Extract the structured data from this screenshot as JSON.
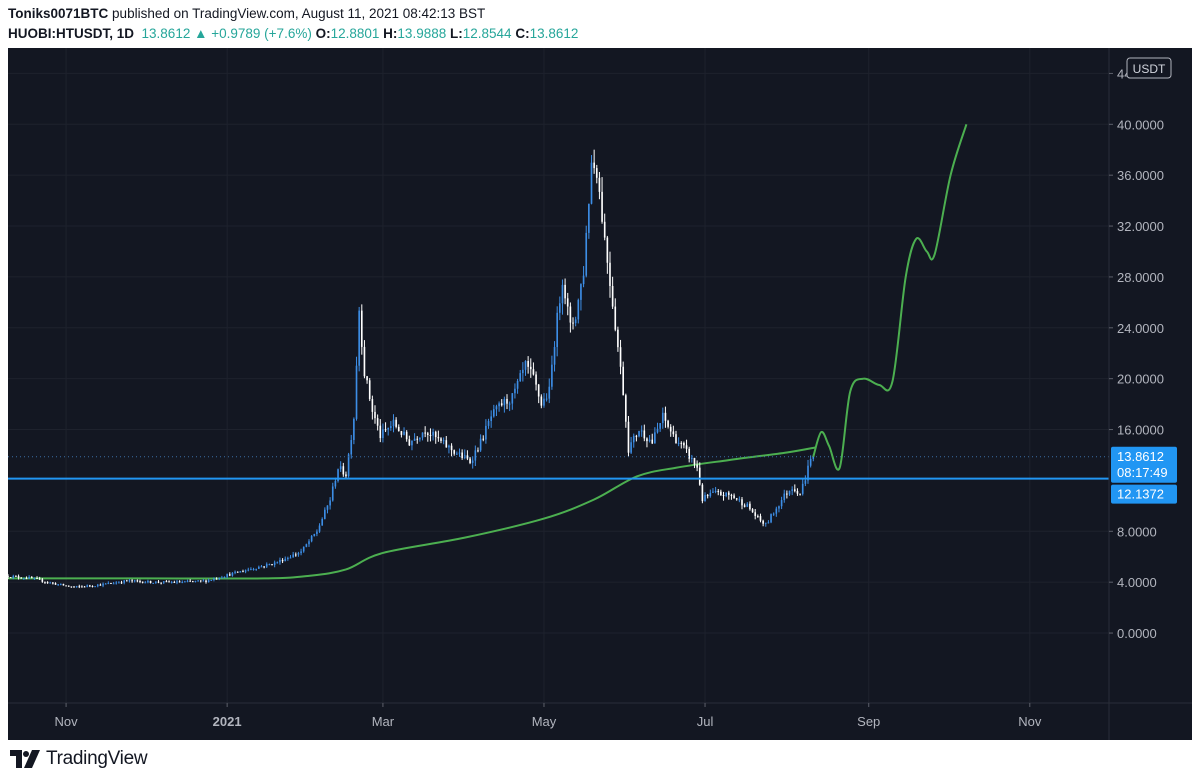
{
  "header": {
    "author": "Toniks0071BTC",
    "published_text": "published on TradingView.com, August 11, 2021 08:42:13 BST",
    "symbol": "HUOBI:HTUSDT, 1D",
    "last": "13.8612",
    "change_arrow": "▲",
    "change": "+0.9789 (+7.6%)",
    "o_label": "O:",
    "o_value": "12.8801",
    "h_label": "H:",
    "h_value": "13.9888",
    "l_label": "L:",
    "l_value": "12.8544",
    "c_label": "C:",
    "c_value": "13.8612"
  },
  "footer": {
    "brand": "TradingView"
  },
  "colors": {
    "background": "#131722",
    "grid": "#1e222d",
    "candle_up": "#3d8ee6",
    "candle_down": "#ffffff",
    "ma_line": "#4caf50",
    "horizontal_line": "#2196f3",
    "last_price_badge": "#2196f3"
  },
  "chart_data": {
    "type": "candlestick",
    "currency": "USDT",
    "y_ticks": [
      "44.0000",
      "40.0000",
      "36.0000",
      "32.0000",
      "28.0000",
      "24.0000",
      "20.0000",
      "16.0000",
      "8.0000",
      "4.0000",
      "0.0000"
    ],
    "ylim": [
      -5.5,
      46
    ],
    "x_ticks": [
      "Nov",
      "2021",
      "Mar",
      "May",
      "Jul",
      "Sep",
      "Nov"
    ],
    "x_tick_dates": [
      "2020-11-01",
      "2021-01-01",
      "2021-03-01",
      "2021-05-01",
      "2021-07-01",
      "2021-09-01",
      "2021-11-01"
    ],
    "xlim": [
      "2020-10-10",
      "2021-12-01"
    ],
    "last_price": {
      "value": 13.8612,
      "label": "13.8612",
      "countdown": "08:17:49"
    },
    "horizontal_line": {
      "value": 12.1372,
      "label": "12.1372"
    },
    "anchors": [
      [
        "2020-10-10",
        4.5
      ],
      [
        "2020-10-20",
        4.3
      ],
      [
        "2020-10-28",
        3.9
      ],
      [
        "2020-11-05",
        3.6
      ],
      [
        "2020-11-15",
        3.8
      ],
      [
        "2020-11-25",
        4.1
      ],
      [
        "2020-12-05",
        4.0
      ],
      [
        "2020-12-15",
        4.0
      ],
      [
        "2020-12-25",
        4.1
      ],
      [
        "2021-01-01",
        4.5
      ],
      [
        "2021-01-10",
        5.0
      ],
      [
        "2021-01-20",
        5.5
      ],
      [
        "2021-01-30",
        6.4
      ],
      [
        "2021-02-05",
        8.0
      ],
      [
        "2021-02-10",
        10.5
      ],
      [
        "2021-02-13",
        13.0
      ],
      [
        "2021-02-16",
        12.5
      ],
      [
        "2021-02-19",
        17.0
      ],
      [
        "2021-02-21",
        25.5
      ],
      [
        "2021-02-23",
        20.5
      ],
      [
        "2021-02-26",
        17.5
      ],
      [
        "2021-03-01",
        15.5
      ],
      [
        "2021-03-06",
        16.5
      ],
      [
        "2021-03-12",
        15.0
      ],
      [
        "2021-03-18",
        16.0
      ],
      [
        "2021-03-24",
        15.0
      ],
      [
        "2021-03-31",
        14.0
      ],
      [
        "2021-04-04",
        13.5
      ],
      [
        "2021-04-08",
        15.0
      ],
      [
        "2021-04-12",
        17.0
      ],
      [
        "2021-04-16",
        18.0
      ],
      [
        "2021-04-20",
        18.5
      ],
      [
        "2021-04-25",
        21.0
      ],
      [
        "2021-04-28",
        20.0
      ],
      [
        "2021-05-01",
        18.0
      ],
      [
        "2021-05-04",
        19.0
      ],
      [
        "2021-05-06",
        23.0
      ],
      [
        "2021-05-09",
        28.0
      ],
      [
        "2021-05-12",
        24.0
      ],
      [
        "2021-05-14",
        25.0
      ],
      [
        "2021-05-17",
        28.5
      ],
      [
        "2021-05-20",
        37.0
      ],
      [
        "2021-05-22",
        36.5
      ],
      [
        "2021-05-25",
        31.0
      ],
      [
        "2021-05-28",
        26.0
      ],
      [
        "2021-06-01",
        19.0
      ],
      [
        "2021-06-03",
        14.5
      ],
      [
        "2021-06-07",
        16.0
      ],
      [
        "2021-06-12",
        15.0
      ],
      [
        "2021-06-16",
        17.0
      ],
      [
        "2021-06-20",
        15.5
      ],
      [
        "2021-06-24",
        14.5
      ],
      [
        "2021-06-29",
        13.0
      ],
      [
        "2021-07-01",
        10.5
      ],
      [
        "2021-07-05",
        11.0
      ],
      [
        "2021-07-12",
        10.8
      ],
      [
        "2021-07-18",
        10.0
      ],
      [
        "2021-07-22",
        9.0
      ],
      [
        "2021-07-25",
        8.5
      ],
      [
        "2021-07-28",
        9.5
      ],
      [
        "2021-08-01",
        10.8
      ],
      [
        "2021-08-04",
        11.5
      ],
      [
        "2021-08-07",
        11.0
      ],
      [
        "2021-08-09",
        12.2
      ],
      [
        "2021-08-10",
        13.0
      ],
      [
        "2021-08-11",
        13.86
      ]
    ],
    "series": [
      {
        "kind": "moving-average",
        "points": [
          [
            "2020-10-10",
            4.3
          ],
          [
            "2020-12-01",
            4.3
          ],
          [
            "2021-01-15",
            4.3
          ],
          [
            "2021-02-01",
            4.5
          ],
          [
            "2021-02-15",
            5.0
          ],
          [
            "2021-03-01",
            6.3
          ],
          [
            "2021-04-01",
            7.5
          ],
          [
            "2021-05-01",
            9.0
          ],
          [
            "2021-05-20",
            10.5
          ],
          [
            "2021-06-05",
            12.3
          ],
          [
            "2021-06-20",
            13.0
          ],
          [
            "2021-07-10",
            13.6
          ],
          [
            "2021-08-01",
            14.2
          ],
          [
            "2021-08-12",
            14.6
          ]
        ]
      },
      {
        "kind": "projection",
        "points": [
          [
            "2021-08-11",
            13.86
          ],
          [
            "2021-08-14",
            15.8
          ],
          [
            "2021-08-17",
            14.7
          ],
          [
            "2021-08-21",
            13.0
          ],
          [
            "2021-08-25",
            19.0
          ],
          [
            "2021-08-30",
            20.0
          ],
          [
            "2021-09-05",
            19.5
          ],
          [
            "2021-09-10",
            19.8
          ],
          [
            "2021-09-15",
            28.0
          ],
          [
            "2021-09-19",
            31.0
          ],
          [
            "2021-09-23",
            30.0
          ],
          [
            "2021-09-26",
            29.8
          ],
          [
            "2021-10-02",
            36.0
          ],
          [
            "2021-10-08",
            40.0
          ]
        ]
      }
    ]
  }
}
